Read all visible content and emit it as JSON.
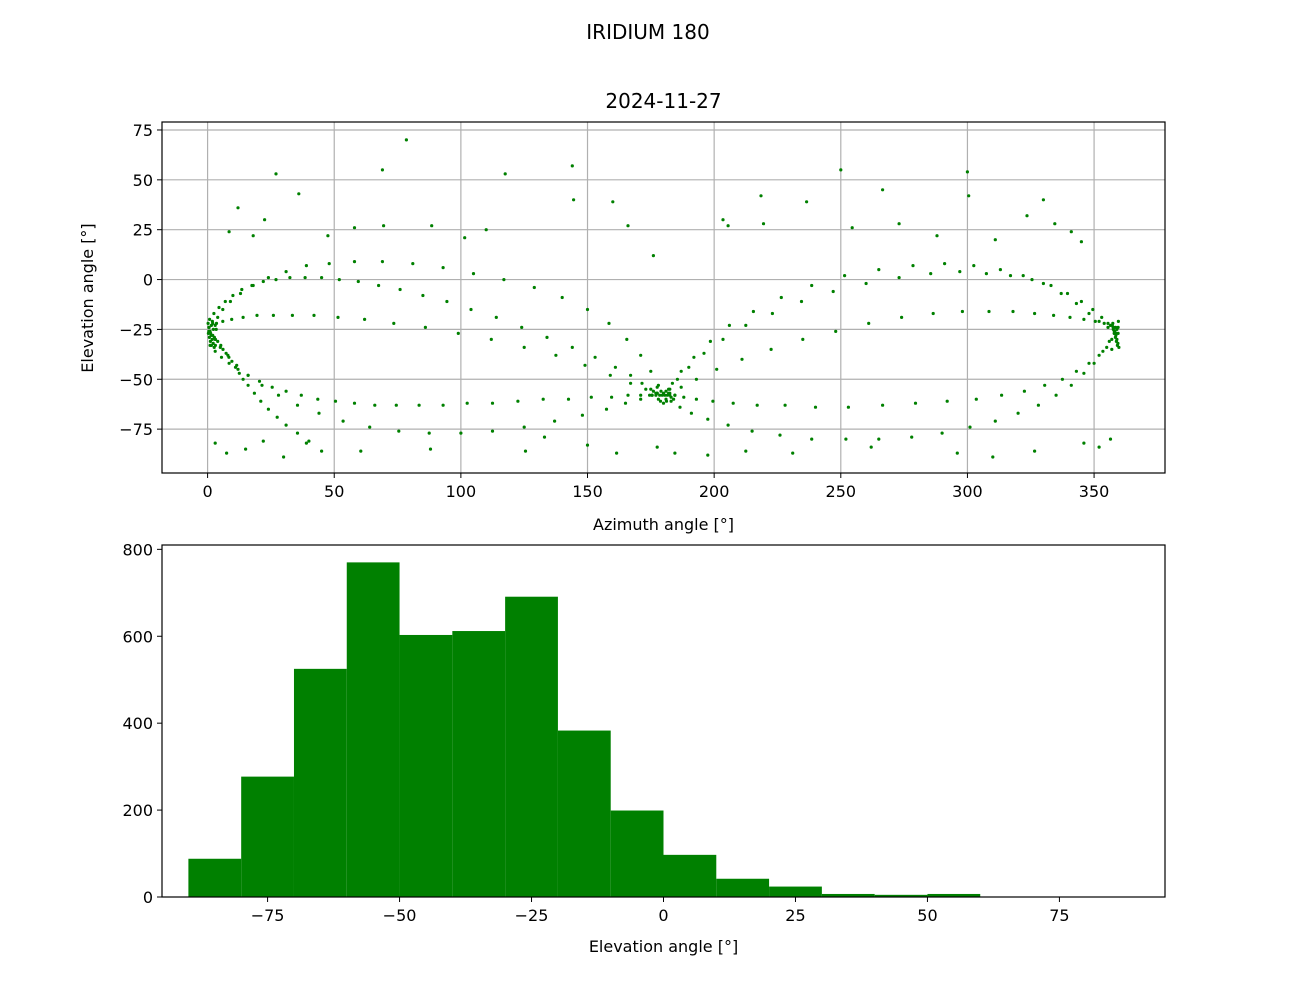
{
  "figure": {
    "suptitle": "IRIDIUM 180"
  },
  "chart_data": [
    {
      "type": "scatter",
      "title": "2024-11-27",
      "xlabel": "Azimuth angle [°]",
      "ylabel": "Elevation angle [°]",
      "xlim": [
        -18,
        378
      ],
      "ylim": [
        -97,
        79
      ],
      "xticks": [
        0,
        50,
        100,
        150,
        200,
        250,
        300,
        350
      ],
      "yticks": [
        -75,
        -50,
        -25,
        0,
        25,
        50,
        75
      ],
      "grid": true,
      "color": "#008000",
      "marker_size": 1.6,
      "points_note": "",
      "x": [
        0.5,
        1.2,
        2.0,
        3.1,
        4.0,
        5.2,
        6.1,
        7.3,
        8.4,
        9.6,
        11.0,
        12.5,
        14.0,
        16.0,
        18.5,
        21.0,
        24.0,
        27.5,
        31.0,
        35.5,
        40.0,
        45.0,
        0.8,
        2.5,
        4.5,
        7.0,
        10.0,
        13.5,
        17.5,
        22.0,
        27.0,
        32.5,
        38.5,
        45.0,
        52.0,
        59.5,
        67.5,
        76.0,
        85.0,
        94.5,
        104.0,
        114.0,
        124.0,
        134.0,
        144.0,
        153.0,
        161.0,
        167.0,
        171.5,
        175.0,
        177.5,
        1.0,
        3.0,
        5.5,
        8.5,
        12.0,
        16.0,
        20.5,
        25.5,
        31.0,
        37.0,
        43.5,
        50.5,
        58.0,
        66.0,
        74.5,
        83.5,
        93.0,
        102.5,
        112.5,
        122.5,
        132.5,
        142.5,
        151.5,
        159.5,
        166.0,
        171.0,
        174.5,
        177.0,
        2.0,
        4.0,
        6.0,
        9.0,
        13.0,
        18.0,
        24.0,
        31.0,
        39.0,
        48.0,
        58.0,
        69.0,
        81.0,
        93.0,
        105.0,
        117.0,
        129.0,
        140.0,
        150.0,
        158.5,
        165.5,
        171.0,
        175.0,
        178.0,
        3.0,
        5.0,
        8.0,
        11.5,
        16.0,
        21.5,
        28.0,
        35.5,
        44.0,
        53.5,
        64.0,
        75.5,
        87.5,
        100.0,
        112.5,
        125.0,
        137.0,
        148.0,
        157.5,
        165.0,
        171.0,
        175.5,
        0.5,
        1.5,
        3.5,
        6.0,
        9.5,
        14.0,
        19.5,
        26.0,
        33.5,
        42.0,
        51.5,
        62.0,
        73.5,
        86.0,
        99.0,
        112.0,
        125.0,
        137.5,
        149.0,
        159.0,
        167.0,
        173.0,
        177.5,
        182.5,
        187.0,
        193.0,
        201.0,
        211.0,
        222.5,
        235.0,
        248.0,
        261.0,
        274.0,
        286.5,
        298.0,
        308.5,
        318.0,
        326.5,
        334.0,
        340.5,
        346.0,
        350.5,
        354.0,
        356.5,
        358.5,
        359.5,
        182.0,
        185.5,
        190.0,
        196.0,
        203.5,
        212.5,
        223.0,
        234.5,
        247.0,
        260.0,
        273.0,
        285.5,
        297.0,
        307.5,
        317.0,
        325.5,
        333.0,
        339.5,
        345.0,
        349.5,
        353.0,
        355.5,
        357.5,
        359.0,
        183.0,
        186.5,
        191.0,
        197.5,
        205.5,
        215.0,
        226.0,
        238.5,
        252.0,
        265.0,
        278.0,
        290.0,
        301.0,
        311.0,
        320.0,
        328.0,
        335.0,
        341.0,
        346.0,
        350.0,
        353.5,
        356.0,
        358.0,
        182.5,
        184.5,
        188.0,
        193.0,
        199.5,
        207.5,
        217.0,
        228.0,
        240.0,
        253.0,
        266.5,
        279.5,
        292.0,
        303.5,
        313.5,
        322.5,
        330.5,
        337.5,
        343.0,
        348.0,
        352.0,
        355.0,
        357.0,
        358.8,
        181.0,
        183.5,
        187.0,
        192.0,
        198.5,
        206.0,
        215.5,
        226.5,
        238.5,
        251.5,
        265.0,
        278.5,
        291.0,
        302.5,
        313.0,
        322.0,
        330.0,
        337.0,
        343.0,
        348.0,
        352.0,
        355.5,
        358.0,
        359.5,
        8.5,
        12.0,
        18.0,
        22.5,
        27.0,
        36.0,
        47.5,
        58.0,
        69.0,
        69.5,
        78.5,
        88.5,
        101.5,
        110.0,
        117.5,
        144.0,
        144.5,
        160.0,
        166.0,
        176.0,
        203.5,
        205.5,
        218.5,
        219.5,
        236.5,
        250.0,
        254.5,
        266.5,
        273.0,
        288.0,
        300.0,
        300.5,
        311.0,
        323.5,
        330.0,
        334.5,
        341.0,
        345.0,
        3.0,
        7.5,
        15.0,
        22.0,
        30.0,
        39.0,
        60.5,
        88.0,
        125.5,
        133.0,
        150.0,
        161.5,
        177.5,
        184.5,
        197.5,
        212.5,
        231.0,
        262.0,
        296.0,
        310.0,
        326.5,
        346.0,
        352.0,
        356.5,
        178.5,
        179.5,
        180.5,
        181.5,
        177.0,
        183.0,
        176.0,
        184.0,
        178.0,
        182.0,
        179.0,
        181.0,
        180.0,
        175.5,
        184.5,
        177.5,
        182.5,
        178.8,
        181.2,
        180.0,
        0.2,
        0.6,
        1.0,
        1.4,
        1.8,
        2.2,
        2.6,
        3.0,
        3.4,
        0.3,
        0.7,
        1.1,
        1.5,
        1.9,
        2.3,
        2.7,
        3.1,
        357.0,
        357.4,
        357.8,
        358.2,
        358.6,
        359.0,
        359.4,
        359.8,
        357.2,
        357.6,
        358.0,
        358.4,
        358.8,
        359.2,
        359.6
      ],
      "y": [
        -26,
        -27,
        -28,
        -30,
        -31,
        -33,
        -35,
        -37,
        -39,
        -41,
        -44,
        -47,
        -50,
        -53,
        -57,
        -61,
        -65,
        -69,
        -73,
        -77,
        -81,
        -86,
        -20,
        -17,
        -14,
        -11,
        -8,
        -5,
        -3,
        -1,
        0,
        1,
        1,
        1,
        0,
        -1,
        -3,
        -5,
        -8,
        -11,
        -15,
        -19,
        -24,
        -29,
        -34,
        -39,
        -44,
        -48,
        -52,
        -55,
        -57,
        -33,
        -36,
        -39,
        -42,
        -45,
        -48,
        -51,
        -54,
        -56,
        -58,
        -60,
        -61,
        -62,
        -63,
        -63,
        -63,
        -63,
        -62,
        -62,
        -61,
        -60,
        -60,
        -59,
        -59,
        -58,
        -58,
        -58,
        -58,
        -22,
        -19,
        -15,
        -11,
        -7,
        -3,
        1,
        4,
        7,
        8,
        9,
        9,
        8,
        6,
        3,
        0,
        -4,
        -9,
        -15,
        -22,
        -30,
        -38,
        -46,
        -53,
        -30,
        -34,
        -38,
        -43,
        -48,
        -53,
        -58,
        -63,
        -67,
        -71,
        -74,
        -76,
        -77,
        -77,
        -76,
        -74,
        -71,
        -68,
        -65,
        -62,
        -60,
        -58,
        -24,
        -23,
        -22,
        -21,
        -20,
        -19,
        -18,
        -18,
        -18,
        -18,
        -19,
        -20,
        -22,
        -24,
        -27,
        -30,
        -34,
        -38,
        -43,
        -48,
        -52,
        -55,
        -57,
        -57,
        -54,
        -50,
        -45,
        -40,
        -35,
        -30,
        -26,
        -22,
        -19,
        -17,
        -16,
        -16,
        -16,
        -17,
        -18,
        -19,
        -20,
        -21,
        -22,
        -23,
        -24,
        -24,
        -55,
        -50,
        -44,
        -37,
        -30,
        -23,
        -17,
        -11,
        -6,
        -2,
        1,
        3,
        4,
        3,
        2,
        0,
        -3,
        -7,
        -11,
        -15,
        -19,
        -22,
        -24,
        -25,
        -61,
        -64,
        -67,
        -70,
        -73,
        -76,
        -78,
        -80,
        -80,
        -80,
        -79,
        -77,
        -74,
        -71,
        -67,
        -63,
        -58,
        -53,
        -47,
        -42,
        -36,
        -31,
        -27,
        -58,
        -58,
        -59,
        -60,
        -61,
        -62,
        -63,
        -63,
        -64,
        -64,
        -63,
        -62,
        -61,
        -60,
        -58,
        -56,
        -53,
        -50,
        -46,
        -42,
        -38,
        -34,
        -30,
        -27,
        -56,
        -52,
        -46,
        -39,
        -31,
        -23,
        -16,
        -9,
        -3,
        2,
        5,
        7,
        8,
        7,
        5,
        2,
        -2,
        -7,
        -12,
        -17,
        -21,
        -24,
        -26,
        -27,
        24,
        36,
        22,
        30,
        53,
        43,
        22,
        26,
        55,
        27,
        70,
        27,
        21,
        25,
        53,
        57,
        40,
        39,
        27,
        12,
        30,
        27,
        42,
        28,
        39,
        55,
        26,
        45,
        28,
        22,
        54,
        42,
        20,
        32,
        40,
        28,
        24,
        19,
        -82,
        -87,
        -85,
        -81,
        -89,
        -82,
        -86,
        -85,
        -86,
        -79,
        -83,
        -87,
        -84,
        -87,
        -88,
        -86,
        -87,
        -84,
        -87,
        -89,
        -86,
        -82,
        -84,
        -80,
        -58,
        -58,
        -58,
        -58,
        -57,
        -59,
        -56,
        -60,
        -60,
        -57,
        -56,
        -60,
        -62,
        -58,
        -58,
        -54,
        -55,
        -61,
        -61,
        -57,
        -22,
        -24,
        -26,
        -28,
        -30,
        -32,
        -34,
        -23,
        -25,
        -27,
        -29,
        -31,
        -33,
        -21,
        -25,
        -29,
        -33,
        -35,
        -22,
        -24,
        -26,
        -28,
        -30,
        -32,
        -34,
        -23,
        -25,
        -27,
        -29,
        -31,
        -33,
        -21
      ]
    },
    {
      "type": "bar",
      "title": "",
      "xlabel": "Elevation angle [°]",
      "ylabel": "",
      "xlim": [
        -95,
        95
      ],
      "ylim": [
        0,
        810
      ],
      "xticks": [
        -75,
        -50,
        -25,
        0,
        25,
        50,
        75
      ],
      "xtick_labels": [
        "−75",
        "−50",
        "−25",
        "0",
        "25",
        "50",
        "75"
      ],
      "yticks": [
        0,
        200,
        400,
        600,
        800
      ],
      "grid": false,
      "color": "#008000",
      "bin_edges": [
        -90,
        -80,
        -70,
        -60,
        -50,
        -40,
        -30,
        -20,
        -10,
        0,
        10,
        20,
        30,
        40,
        50,
        60,
        70,
        80,
        90
      ],
      "counts": [
        88,
        277,
        525,
        770,
        603,
        612,
        691,
        383,
        199,
        97,
        42,
        24,
        7,
        5,
        7,
        1,
        1,
        1
      ]
    }
  ]
}
